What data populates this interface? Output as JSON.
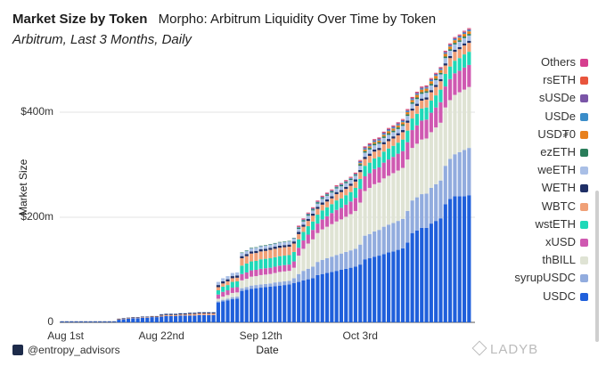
{
  "header": {
    "brand": "Market Size by Token",
    "title": "Morpho: Arbitrum Liquidity Over Time by Token",
    "subtitle": "Arbitrum, Last 3 Months, Daily"
  },
  "footer": {
    "handle": "@entropy_advisors"
  },
  "watermark": {
    "text": "LADYB"
  },
  "colors": {
    "Others": "#d63f8f",
    "rsETH": "#e8553d",
    "sUSDe": "#7a55a7",
    "USDe": "#3b8dc9",
    "USD₮0": "#e8801d",
    "ezETH": "#2a7d5a",
    "weETH": "#a9bfe6",
    "WETH": "#1f2f66",
    "WBTC": "#f0a077",
    "wstETH": "#1fd9b8",
    "xUSD": "#cf59b1",
    "thBILL": "#dfe3d4",
    "syrupUSDC": "#92acde",
    "USDC": "#1f5fdb"
  },
  "chart_data": {
    "type": "bar",
    "stacked": true,
    "title": "Morpho: Arbitrum Liquidity Over Time by Token",
    "subtitle": "Arbitrum, Last 3 Months, Daily",
    "xlabel": "Date",
    "ylabel": "Market Size",
    "ylim": [
      0,
      500
    ],
    "y_unit": "m",
    "y_ticks": [
      {
        "value": 0,
        "label": "0"
      },
      {
        "value": 200,
        "label": "$200m"
      },
      {
        "value": 400,
        "label": "$400m"
      }
    ],
    "x_ticks": [
      {
        "index": 0,
        "label": "Aug 1st"
      },
      {
        "index": 21,
        "label": "Aug 22nd"
      },
      {
        "index": 42,
        "label": "Sep 12th"
      },
      {
        "index": 63,
        "label": "Oct 3rd"
      }
    ],
    "grid": true,
    "legend_placement": "right",
    "legend_order": [
      "Others",
      "rsETH",
      "sUSDe",
      "USDe",
      "USD₮0",
      "ezETH",
      "weETH",
      "WETH",
      "WBTC",
      "wstETH",
      "xUSD",
      "thBILL",
      "syrupUSDC",
      "USDC"
    ],
    "series": [
      {
        "name": "USDC",
        "values": [
          1,
          1,
          1,
          1,
          1,
          1,
          1,
          1,
          1,
          1,
          1,
          1,
          5,
          6,
          7,
          8,
          8,
          9,
          9,
          10,
          10,
          11,
          12,
          12,
          12,
          13,
          13,
          13,
          13,
          14,
          14,
          14,
          14,
          38,
          40,
          42,
          44,
          45,
          60,
          62,
          64,
          65,
          66,
          67,
          68,
          69,
          70,
          71,
          72,
          75,
          77,
          80,
          82,
          84,
          90,
          92,
          94,
          96,
          98,
          100,
          102,
          104,
          106,
          110,
          120,
          122,
          125,
          127,
          130,
          133,
          135,
          138,
          141,
          152,
          170,
          175,
          180,
          180,
          188,
          193,
          198,
          225,
          235,
          240,
          240,
          240,
          242
        ]
      },
      {
        "name": "syrupUSDC",
        "values": [
          0,
          0,
          0,
          0,
          0,
          0,
          0,
          0,
          0,
          0,
          0,
          0,
          0,
          0,
          0,
          0,
          0,
          0,
          0,
          0,
          0,
          0,
          0,
          0,
          0,
          0,
          0,
          0,
          0,
          0,
          0,
          0,
          0,
          2,
          3,
          3,
          4,
          4,
          5,
          5,
          6,
          6,
          6,
          6,
          6,
          7,
          7,
          7,
          7,
          9,
          15,
          18,
          20,
          22,
          25,
          27,
          28,
          29,
          30,
          31,
          32,
          33,
          34,
          38,
          45,
          46,
          48,
          49,
          52,
          53,
          54,
          55,
          56,
          60,
          62,
          63,
          64,
          65,
          68,
          70,
          72,
          73,
          76,
          80,
          84,
          88,
          90
        ]
      },
      {
        "name": "thBILL",
        "values": [
          0,
          0,
          0,
          0,
          0,
          0,
          0,
          0,
          0,
          0,
          0,
          0,
          0,
          0,
          0,
          0,
          0,
          0,
          0,
          0,
          0,
          0,
          0,
          0,
          0,
          0,
          0,
          0,
          0,
          0,
          0,
          0,
          0,
          5,
          6,
          7,
          8,
          8,
          15,
          16,
          17,
          17,
          18,
          18,
          18,
          18,
          19,
          19,
          19,
          20,
          35,
          42,
          48,
          52,
          55,
          58,
          60,
          62,
          64,
          65,
          67,
          69,
          72,
          80,
          85,
          88,
          90,
          90,
          92,
          93,
          95,
          96,
          97,
          98,
          100,
          102,
          104,
          105,
          106,
          108,
          110,
          111,
          112,
          113,
          114,
          115,
          116
        ]
      },
      {
        "name": "xUSD",
        "values": [
          0,
          0,
          0,
          0,
          0,
          0,
          0,
          0,
          0,
          0,
          0,
          0,
          0,
          0,
          0,
          0,
          0,
          0,
          0,
          0,
          0,
          0,
          0,
          0,
          0,
          0,
          0,
          0,
          0,
          0,
          0,
          0,
          0,
          8,
          9,
          9,
          10,
          10,
          12,
          12,
          12,
          12,
          12,
          12,
          12,
          12,
          12,
          12,
          12,
          12,
          15,
          16,
          17,
          18,
          18,
          19,
          20,
          21,
          22,
          22,
          23,
          24,
          25,
          26,
          28,
          28,
          29,
          29,
          30,
          31,
          31,
          32,
          32,
          33,
          34,
          35,
          36,
          36,
          37,
          38,
          39,
          40,
          40,
          41,
          41,
          42,
          42
        ]
      },
      {
        "name": "wstETH",
        "values": [
          0,
          0,
          0,
          0,
          0,
          0,
          0,
          0,
          0,
          0,
          0,
          0,
          0,
          0,
          0,
          0,
          0,
          0,
          0,
          0,
          0,
          0,
          0,
          0,
          0,
          0,
          0,
          0,
          0,
          0,
          0,
          0,
          0,
          8,
          10,
          10,
          11,
          11,
          16,
          17,
          17,
          17,
          18,
          18,
          18,
          18,
          18,
          18,
          18,
          18,
          16,
          16,
          16,
          16,
          17,
          17,
          17,
          17,
          18,
          18,
          18,
          18,
          19,
          19,
          20,
          20,
          20,
          20,
          21,
          21,
          21,
          21,
          22,
          22,
          22,
          22,
          23,
          23,
          23,
          23,
          24,
          24,
          24,
          24,
          24,
          25,
          25
        ]
      },
      {
        "name": "WBTC",
        "values": [
          0,
          0,
          0,
          0,
          0,
          0,
          0,
          0,
          0,
          0,
          0,
          0,
          1,
          1,
          1,
          1,
          1,
          1,
          1,
          1,
          1,
          2,
          2,
          2,
          2,
          2,
          2,
          3,
          3,
          3,
          3,
          3,
          3,
          6,
          6,
          7,
          7,
          7,
          14,
          14,
          15,
          15,
          15,
          15,
          16,
          16,
          16,
          16,
          16,
          16,
          10,
          10,
          10,
          11,
          11,
          11,
          11,
          11,
          12,
          12,
          12,
          12,
          12,
          13,
          13,
          13,
          13,
          13,
          14,
          14,
          14,
          14,
          14,
          15,
          15,
          15,
          15,
          15,
          16,
          16,
          16,
          16,
          16,
          17,
          17,
          17,
          17
        ]
      },
      {
        "name": "WETH",
        "values": [
          1,
          1,
          1,
          1,
          1,
          1,
          1,
          1,
          1,
          1,
          1,
          1,
          1,
          1,
          1,
          1,
          1,
          1,
          1,
          1,
          1,
          2,
          2,
          2,
          2,
          2,
          2,
          2,
          2,
          2,
          2,
          2,
          2,
          4,
          4,
          4,
          4,
          4,
          4,
          4,
          4,
          4,
          4,
          4,
          4,
          4,
          4,
          4,
          4,
          4,
          4,
          4,
          4,
          4,
          4,
          4,
          4,
          4,
          4,
          4,
          4,
          4,
          4,
          4,
          4,
          4,
          4,
          4,
          4,
          4,
          4,
          4,
          4,
          4,
          4,
          4,
          4,
          4,
          4,
          4,
          4,
          4,
          4,
          4,
          4,
          4,
          4
        ]
      },
      {
        "name": "weETH",
        "values": [
          0,
          0,
          0,
          0,
          0,
          0,
          0,
          0,
          0,
          0,
          0,
          0,
          0,
          0,
          0,
          0,
          0,
          0,
          0,
          0,
          0,
          1,
          1,
          1,
          1,
          1,
          1,
          1,
          1,
          1,
          1,
          1,
          1,
          6,
          6,
          6,
          6,
          6,
          6,
          6,
          6,
          6,
          6,
          6,
          6,
          6,
          6,
          6,
          6,
          6,
          6,
          6,
          6,
          6,
          6,
          7,
          7,
          7,
          7,
          7,
          7,
          7,
          7,
          8,
          8,
          8,
          8,
          8,
          8,
          8,
          8,
          8,
          8,
          9,
          9,
          9,
          9,
          9,
          9,
          9,
          9,
          10,
          10,
          10,
          10,
          10,
          10
        ]
      },
      {
        "name": "ezETH",
        "values": [
          0,
          0,
          0,
          0,
          0,
          0,
          0,
          0,
          0,
          0,
          0,
          0,
          0,
          0,
          0,
          0,
          0,
          0,
          0,
          0,
          0,
          0,
          0,
          0,
          0,
          0,
          0,
          0,
          0,
          0,
          0,
          0,
          0,
          0,
          0,
          0,
          0,
          0,
          1,
          1,
          1,
          1,
          1,
          1,
          1,
          1,
          1,
          1,
          1,
          1,
          2,
          2,
          2,
          2,
          2,
          2,
          2,
          2,
          2,
          2,
          2,
          2,
          2,
          3,
          3,
          3,
          3,
          3,
          3,
          3,
          3,
          3,
          3,
          3,
          3,
          3,
          3,
          3,
          3,
          3,
          3,
          3,
          3,
          3,
          3,
          3,
          3
        ]
      },
      {
        "name": "USD₮0",
        "values": [
          0,
          0,
          0,
          0,
          0,
          0,
          0,
          0,
          0,
          0,
          0,
          0,
          0,
          0,
          0,
          0,
          0,
          0,
          0,
          0,
          0,
          0,
          0,
          0,
          0,
          0,
          0,
          0,
          0,
          0,
          0,
          0,
          0,
          0,
          0,
          0,
          0,
          0,
          0,
          0,
          0,
          0,
          0,
          0,
          0,
          0,
          0,
          0,
          0,
          0,
          0,
          0,
          0,
          0,
          0,
          0,
          0,
          0,
          0,
          0,
          0,
          0,
          0,
          2,
          3,
          3,
          3,
          3,
          3,
          4,
          4,
          4,
          4,
          4,
          4,
          5,
          5,
          5,
          5,
          5,
          5,
          5,
          5,
          5,
          5,
          5,
          5
        ]
      },
      {
        "name": "USDe",
        "values": [
          0,
          0,
          0,
          0,
          0,
          0,
          0,
          0,
          0,
          0,
          0,
          0,
          0,
          0,
          0,
          0,
          0,
          0,
          0,
          0,
          0,
          0,
          0,
          0,
          0,
          0,
          0,
          0,
          0,
          0,
          0,
          0,
          0,
          0,
          0,
          0,
          0,
          0,
          0,
          0,
          0,
          0,
          0,
          0,
          0,
          0,
          0,
          0,
          0,
          0,
          1,
          1,
          1,
          1,
          1,
          1,
          1,
          1,
          1,
          1,
          1,
          1,
          1,
          2,
          2,
          2,
          2,
          2,
          2,
          2,
          2,
          2,
          2,
          2,
          2,
          2,
          2,
          2,
          2,
          2,
          2,
          2,
          2,
          2,
          2,
          2,
          2
        ]
      },
      {
        "name": "sUSDe",
        "values": [
          0,
          0,
          0,
          0,
          0,
          0,
          0,
          0,
          0,
          0,
          0,
          0,
          0,
          0,
          0,
          0,
          0,
          0,
          0,
          0,
          0,
          0,
          0,
          0,
          0,
          0,
          0,
          0,
          0,
          0,
          0,
          0,
          0,
          0,
          0,
          0,
          0,
          0,
          0,
          0,
          0,
          0,
          0,
          0,
          0,
          0,
          0,
          0,
          0,
          0,
          1,
          1,
          1,
          1,
          1,
          1,
          1,
          1,
          1,
          1,
          1,
          1,
          1,
          2,
          2,
          2,
          2,
          2,
          2,
          2,
          2,
          2,
          2,
          2,
          2,
          2,
          2,
          2,
          2,
          2,
          2,
          2,
          2,
          2,
          2,
          2,
          2
        ]
      },
      {
        "name": "rsETH",
        "values": [
          0,
          0,
          0,
          0,
          0,
          0,
          0,
          0,
          0,
          0,
          0,
          0,
          0,
          0,
          0,
          0,
          0,
          0,
          0,
          0,
          0,
          0,
          0,
          0,
          0,
          0,
          0,
          0,
          0,
          0,
          0,
          0,
          0,
          0,
          0,
          0,
          0,
          0,
          0,
          0,
          0,
          0,
          0,
          0,
          0,
          0,
          0,
          0,
          0,
          0,
          1,
          1,
          1,
          1,
          1,
          1,
          1,
          1,
          1,
          1,
          1,
          1,
          1,
          1,
          1,
          1,
          1,
          1,
          1,
          1,
          1,
          1,
          1,
          1,
          1,
          1,
          1,
          1,
          1,
          1,
          1,
          1,
          1,
          1,
          1,
          1,
          1
        ]
      },
      {
        "name": "Others",
        "values": [
          0,
          0,
          0,
          0,
          0,
          0,
          0,
          0,
          0,
          0,
          0,
          0,
          0,
          0,
          0,
          0,
          0,
          0,
          0,
          0,
          0,
          0,
          0,
          0,
          0,
          0,
          0,
          0,
          0,
          0,
          0,
          0,
          0,
          0,
          0,
          0,
          0,
          0,
          0,
          0,
          0,
          0,
          0,
          0,
          0,
          0,
          0,
          0,
          0,
          0,
          1,
          1,
          1,
          1,
          1,
          1,
          1,
          1,
          1,
          1,
          1,
          1,
          1,
          1,
          1,
          1,
          1,
          1,
          1,
          1,
          1,
          1,
          1,
          1,
          1,
          1,
          1,
          1,
          1,
          1,
          1,
          1,
          1,
          1,
          1,
          1,
          1
        ]
      }
    ]
  }
}
